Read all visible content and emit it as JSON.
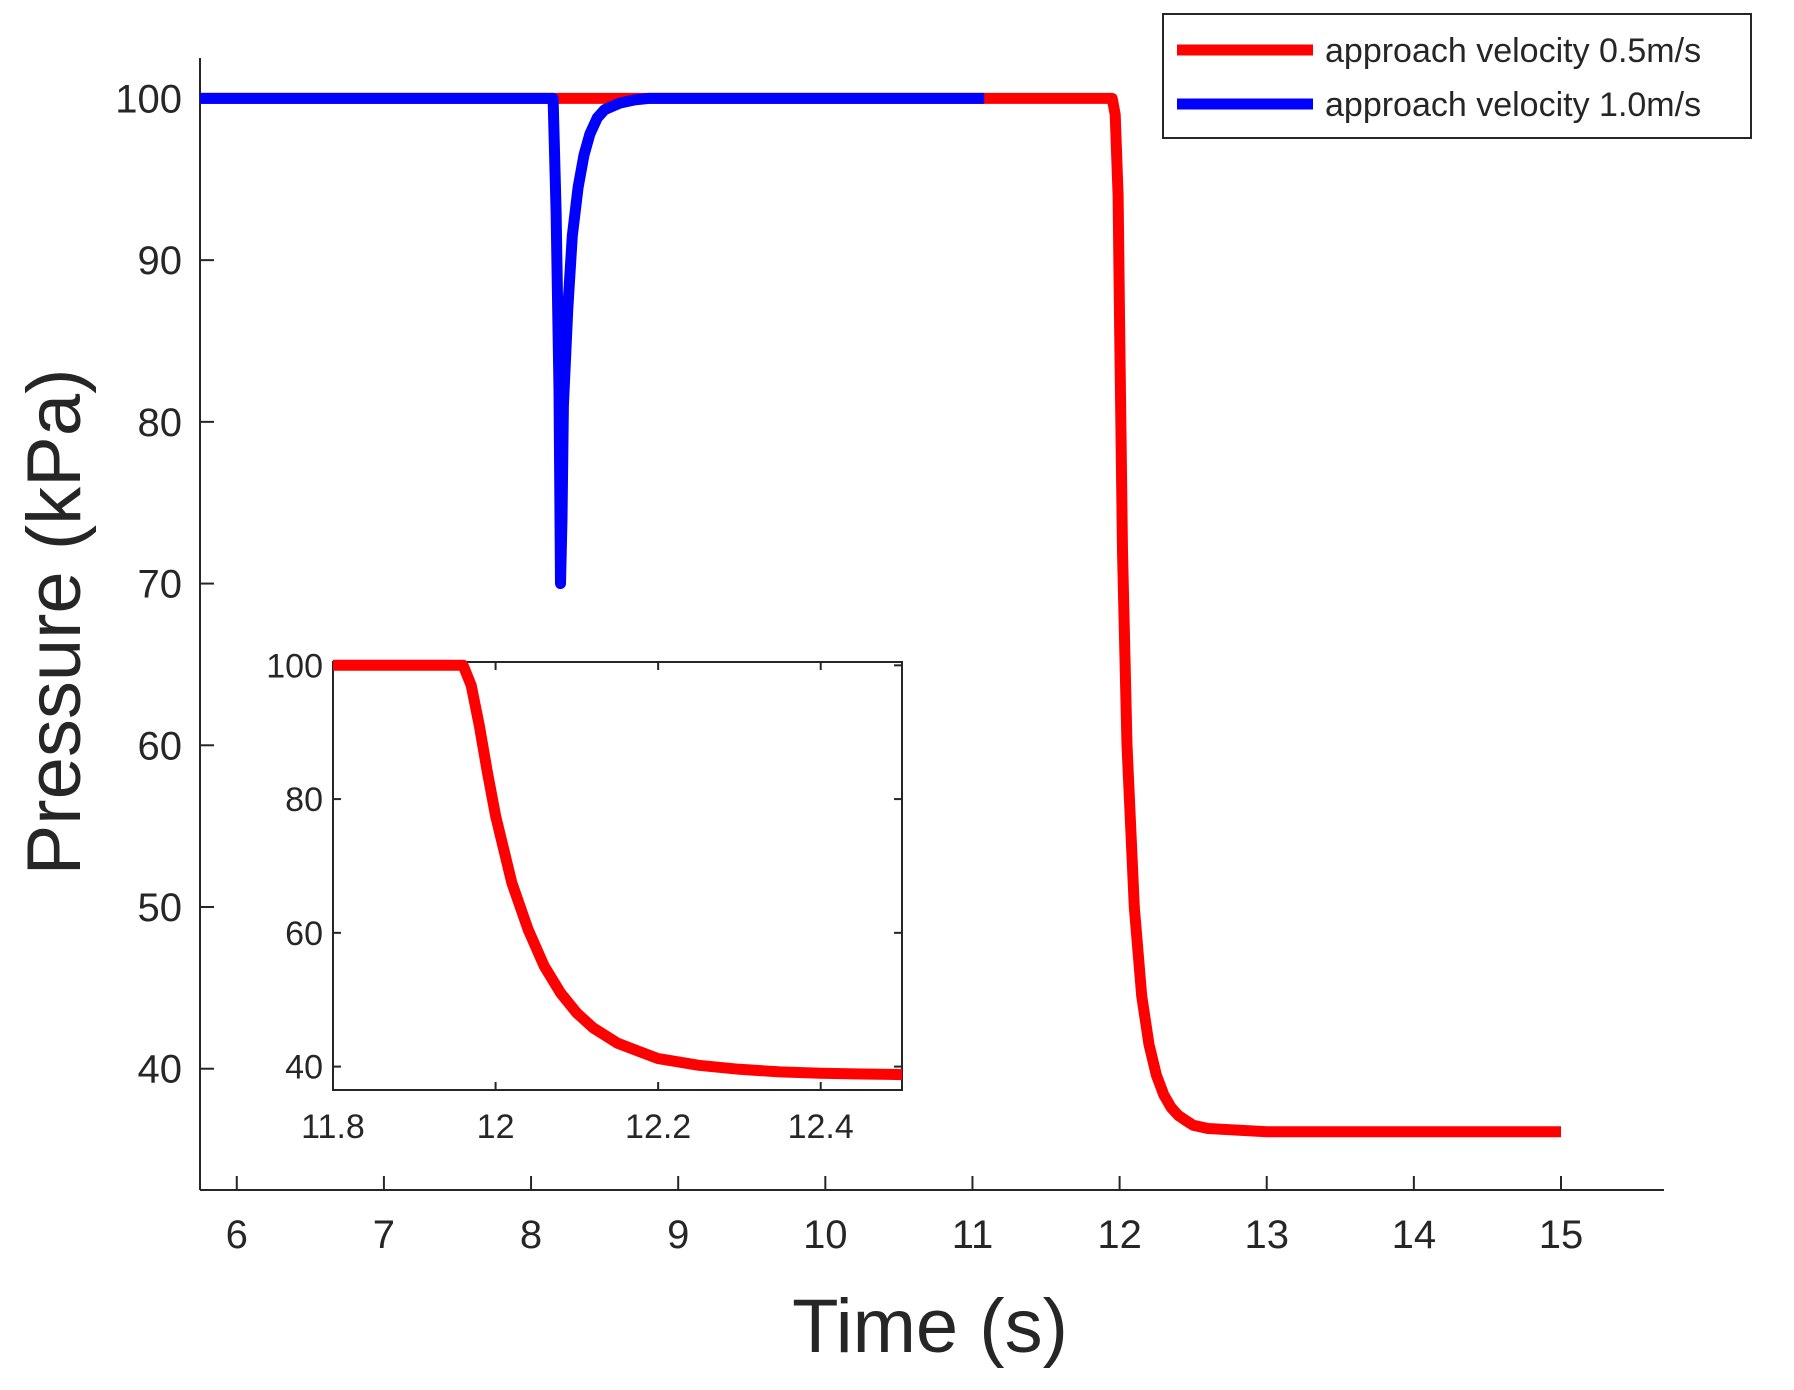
{
  "chart_data": [
    {
      "id": "main",
      "type": "line",
      "title": "",
      "xlabel": "Time (s)",
      "ylabel": "Pressure (kPa)",
      "xlim": [
        5.75,
        15.7
      ],
      "ylim": [
        32.5,
        102.5
      ],
      "xticks": [
        6,
        7,
        8,
        9,
        10,
        11,
        12,
        13,
        14,
        15
      ],
      "yticks": [
        40,
        50,
        60,
        70,
        80,
        90,
        100
      ],
      "grid": false,
      "legend_position": "top-right",
      "series": [
        {
          "name": "approach velocity 0.5m/s",
          "color": "#ff0000",
          "x": [
            5.75,
            11.95,
            11.97,
            11.99,
            12.0,
            12.02,
            12.05,
            12.1,
            12.15,
            12.2,
            12.25,
            12.3,
            12.35,
            12.4,
            12.45,
            12.5,
            12.6,
            13.0,
            14.0,
            15.0
          ],
          "y": [
            100,
            100,
            99,
            94,
            86,
            72,
            60,
            50,
            44.5,
            41.5,
            39.6,
            38.4,
            37.6,
            37.1,
            36.8,
            36.5,
            36.3,
            36.1,
            36.1,
            36.1
          ]
        },
        {
          "name": "approach velocity 1.0m/s",
          "color": "#0000ff",
          "x": [
            5.75,
            8.15,
            8.17,
            8.19,
            8.2,
            8.21,
            8.22,
            8.25,
            8.28,
            8.32,
            8.36,
            8.4,
            8.45,
            8.5,
            8.6,
            8.7,
            8.8,
            9.0,
            11.08
          ],
          "y": [
            100,
            100,
            93,
            82,
            70,
            74,
            81,
            87,
            91.5,
            94.5,
            96.5,
            97.8,
            98.8,
            99.3,
            99.7,
            99.9,
            100,
            100,
            100
          ]
        }
      ]
    },
    {
      "id": "inset",
      "type": "line",
      "xlim": [
        11.8,
        12.5
      ],
      "ylim": [
        36.5,
        100.5
      ],
      "xticks": [
        11.8,
        12,
        12.2,
        12.4
      ],
      "yticks": [
        40,
        60,
        80,
        100
      ],
      "grid": false,
      "series": [
        {
          "name": "approach velocity 0.5m/s",
          "color": "#ff0000",
          "x": [
            11.8,
            11.96,
            11.97,
            11.98,
            11.99,
            12.0,
            12.02,
            12.04,
            12.06,
            12.08,
            12.1,
            12.12,
            12.15,
            12.2,
            12.25,
            12.3,
            12.35,
            12.4,
            12.45,
            12.5
          ],
          "y": [
            100,
            100,
            97,
            91,
            84,
            77.5,
            67.5,
            60.5,
            55,
            51,
            48,
            45.8,
            43.5,
            41.2,
            40.2,
            39.6,
            39.2,
            39.0,
            38.9,
            38.8
          ]
        }
      ]
    }
  ]
}
